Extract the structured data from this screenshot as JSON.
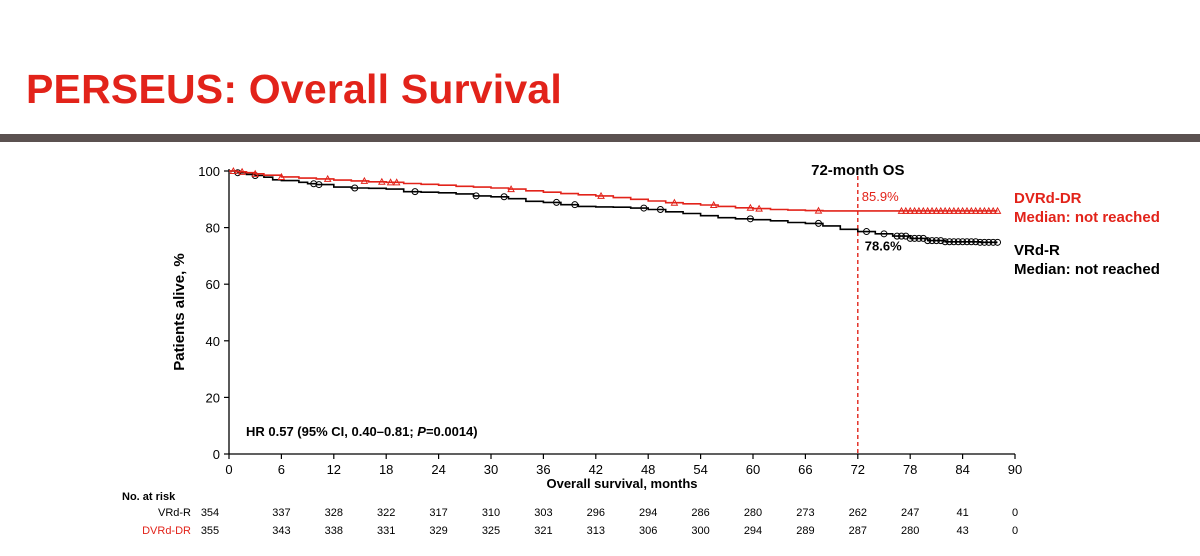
{
  "slide": {
    "title": "PERSEUS: Overall Survival"
  },
  "colors": {
    "title": "#e2231a",
    "rule": "#5b5150",
    "dvrd": "#e2231a",
    "vrd": "#000000"
  },
  "chart_data": {
    "type": "line",
    "chart_subtype": "kaplan-meier",
    "xlabel": "Overall survival, months",
    "ylabel": "Patients alive, %",
    "xlim": [
      0,
      90
    ],
    "ylim": [
      0,
      100
    ],
    "xticks": [
      0,
      6,
      12,
      18,
      24,
      30,
      36,
      42,
      48,
      54,
      60,
      66,
      72,
      78,
      84,
      90
    ],
    "yticks": [
      0,
      20,
      40,
      60,
      80,
      100
    ],
    "grid": false,
    "reference_line": {
      "x": 72,
      "label": "72-month OS",
      "style": "dashed",
      "color": "#e2231a"
    },
    "series": [
      {
        "name": "DVRd-DR",
        "subtitle": "Median: not reached",
        "color": "#e2231a",
        "censor_marker": "triangle",
        "annotation": "85.9%",
        "points": [
          [
            0,
            100
          ],
          [
            1,
            99.7
          ],
          [
            2,
            99.4
          ],
          [
            3,
            99
          ],
          [
            4,
            98.5
          ],
          [
            6,
            97.9
          ],
          [
            8,
            97.5
          ],
          [
            10,
            97.2
          ],
          [
            12,
            96.8
          ],
          [
            14,
            96.5
          ],
          [
            16,
            96.2
          ],
          [
            18,
            96
          ],
          [
            20,
            95.6
          ],
          [
            22,
            95.3
          ],
          [
            24,
            95
          ],
          [
            26,
            94.6
          ],
          [
            28,
            94.3
          ],
          [
            30,
            94
          ],
          [
            32,
            93.6
          ],
          [
            34,
            93
          ],
          [
            36,
            92.5
          ],
          [
            38,
            92
          ],
          [
            40,
            91.6
          ],
          [
            42,
            91.2
          ],
          [
            44,
            90.6
          ],
          [
            46,
            90
          ],
          [
            48,
            89.4
          ],
          [
            50,
            88.8
          ],
          [
            52,
            88.4
          ],
          [
            54,
            88
          ],
          [
            56,
            87.5
          ],
          [
            58,
            87
          ],
          [
            60,
            86.7
          ],
          [
            62,
            86.4
          ],
          [
            64,
            86.2
          ],
          [
            66,
            86
          ],
          [
            68,
            85.9
          ],
          [
            72,
            85.9
          ],
          [
            76,
            85.9
          ],
          [
            82,
            85.9
          ],
          [
            88,
            85.9
          ]
        ],
        "censor_x": [
          0.5,
          1.5,
          3,
          6,
          11.3,
          15.5,
          17.5,
          18.5,
          19.2,
          32.3,
          42.6,
          51,
          55.5,
          59.7,
          60.7,
          67.5,
          77,
          77.5,
          78,
          78.5,
          79,
          79.5,
          80,
          80.5,
          81,
          81.5,
          82,
          82.5,
          83,
          83.5,
          84,
          84.5,
          85,
          85.5,
          86,
          86.5,
          87,
          87.5,
          88
        ]
      },
      {
        "name": "VRd-R",
        "subtitle": "Median: not reached",
        "color": "#000000",
        "censor_marker": "circle",
        "annotation": "78.6%",
        "points": [
          [
            0,
            100
          ],
          [
            1,
            99.4
          ],
          [
            2,
            98.8
          ],
          [
            3,
            98.4
          ],
          [
            4,
            97.8
          ],
          [
            5,
            96.9
          ],
          [
            6,
            96.6
          ],
          [
            8,
            96
          ],
          [
            9,
            95.5
          ],
          [
            10,
            95.2
          ],
          [
            12,
            94.3
          ],
          [
            14,
            94
          ],
          [
            16,
            93.9
          ],
          [
            18,
            93.6
          ],
          [
            20,
            92.7
          ],
          [
            22,
            92.5
          ],
          [
            24,
            92.3
          ],
          [
            26,
            91.9
          ],
          [
            28,
            91.2
          ],
          [
            30,
            90.9
          ],
          [
            32,
            90.2
          ],
          [
            34,
            89.3
          ],
          [
            36,
            88.9
          ],
          [
            38,
            88.1
          ],
          [
            40,
            87.5
          ],
          [
            42,
            87.3
          ],
          [
            44,
            87.2
          ],
          [
            46,
            86.9
          ],
          [
            48,
            86.4
          ],
          [
            50,
            85.6
          ],
          [
            52,
            85
          ],
          [
            54,
            84.2
          ],
          [
            56,
            83.5
          ],
          [
            58,
            83.1
          ],
          [
            60,
            82.8
          ],
          [
            62,
            82.4
          ],
          [
            64,
            81.8
          ],
          [
            66,
            81.5
          ],
          [
            68,
            80.6
          ],
          [
            70,
            79.4
          ],
          [
            72,
            78.6
          ],
          [
            74,
            77.8
          ],
          [
            76,
            77
          ],
          [
            78,
            76.2
          ],
          [
            80,
            75.4
          ],
          [
            82,
            75
          ],
          [
            86,
            74.8
          ],
          [
            88,
            74.8
          ]
        ],
        "censor_x": [
          1,
          3,
          9.7,
          10.3,
          14.4,
          21.3,
          28.3,
          31.5,
          37.5,
          39.6,
          47.5,
          49.4,
          59.7,
          67.5,
          73,
          75,
          76.5,
          77,
          77.5,
          78,
          78.5,
          79,
          79.5,
          80,
          80.5,
          81,
          81.5,
          82,
          82.5,
          83,
          83.5,
          84,
          84.5,
          85,
          85.5,
          86,
          86.5,
          87,
          87.5,
          88
        ]
      }
    ],
    "hr_text": {
      "prefix": "HR 0.57 (95% CI, 0.40–0.81; ",
      "p_letter": "P",
      "suffix": "=0.0014)"
    },
    "risk_table": {
      "title": "No. at risk",
      "times": [
        0,
        6,
        12,
        18,
        24,
        30,
        36,
        42,
        48,
        54,
        60,
        66,
        72,
        78,
        84,
        90
      ],
      "rows": [
        {
          "label": "VRd-R",
          "color": "#000000",
          "values": [
            354,
            337,
            328,
            322,
            317,
            310,
            303,
            296,
            294,
            286,
            280,
            273,
            262,
            247,
            41,
            0
          ]
        },
        {
          "label": "DVRd-DR",
          "color": "#e2231a",
          "values": [
            355,
            343,
            338,
            331,
            329,
            325,
            321,
            313,
            306,
            300,
            294,
            289,
            287,
            280,
            43,
            0
          ]
        }
      ]
    }
  }
}
